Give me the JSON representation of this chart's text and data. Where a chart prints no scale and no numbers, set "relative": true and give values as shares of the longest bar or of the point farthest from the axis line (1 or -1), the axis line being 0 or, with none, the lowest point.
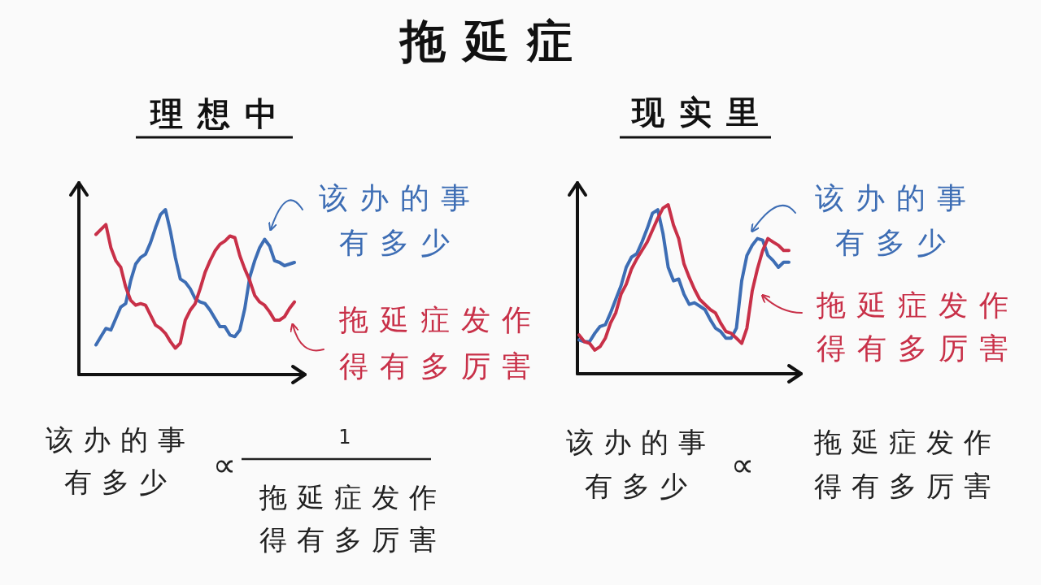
{
  "chart_data": [
    {
      "type": "line",
      "subtitle": "理想中",
      "relative": true,
      "legend": "right",
      "categories": [
        null,
        null,
        null,
        null,
        null,
        null,
        null,
        null,
        null,
        null,
        null,
        null,
        null,
        null,
        null,
        null,
        null,
        null,
        null,
        null,
        null,
        null,
        null,
        null,
        null,
        null,
        null,
        null,
        null,
        null,
        null,
        null,
        null,
        null,
        null,
        null,
        null,
        null,
        null,
        null,
        null
      ],
      "series": [
        {
          "name": "该办的事有多少",
          "color": "#3d6db4",
          "values": [
            0.18,
            0.23,
            0.28,
            0.27,
            0.34,
            0.41,
            0.43,
            0.57,
            0.67,
            0.71,
            0.73,
            0.8,
            0.89,
            0.97,
            1,
            0.87,
            0.71,
            0.58,
            0.56,
            0.52,
            0.46,
            0.44,
            0.43,
            0.39,
            0.34,
            0.29,
            0.29,
            0.24,
            0.23,
            0.27,
            0.4,
            0.59,
            0.69,
            0.77,
            0.82,
            0.78,
            0.69,
            0.68,
            0.66,
            0.67,
            0.68
          ]
        },
        {
          "name": "拖延症发作得有多厉害",
          "color": "#c83048",
          "values": [
            0.85,
            0.88,
            0.91,
            0.77,
            0.69,
            0.65,
            0.53,
            0.45,
            0.42,
            0.43,
            0.42,
            0.36,
            0.3,
            0.28,
            0.25,
            0.2,
            0.16,
            0.19,
            0.33,
            0.39,
            0.43,
            0.52,
            0.62,
            0.69,
            0.75,
            0.79,
            0.81,
            0.84,
            0.83,
            0.72,
            0.64,
            0.57,
            0.48,
            0.44,
            0.42,
            0.38,
            0.33,
            0.33,
            0.35,
            0.4,
            0.44
          ]
        }
      ],
      "annotations": [
        "该办的事有多少",
        "∝",
        "1",
        "拖延症发作得有多厉害"
      ]
    },
    {
      "type": "line",
      "title": "拖延症",
      "subtitle": "现实里",
      "relative": true,
      "legend": "right",
      "categories": [
        null,
        null,
        null,
        null,
        null,
        null,
        null,
        null,
        null,
        null,
        null,
        null,
        null,
        null,
        null,
        null,
        null,
        null,
        null,
        null,
        null,
        null,
        null,
        null,
        null,
        null,
        null,
        null,
        null,
        null,
        null,
        null,
        null,
        null,
        null,
        null,
        null,
        null,
        null,
        null,
        null
      ],
      "series": [
        {
          "name": "该办的事有多少",
          "color": "#3d6db4",
          "values": [
            0.2,
            0.19,
            0.19,
            0.24,
            0.28,
            0.29,
            0.36,
            0.44,
            0.52,
            0.63,
            0.69,
            0.71,
            0.78,
            0.86,
            0.95,
            0.97,
            0.83,
            0.63,
            0.55,
            0.56,
            0.47,
            0.41,
            0.42,
            0.4,
            0.38,
            0.32,
            0.27,
            0.25,
            0.21,
            0.21,
            0.27,
            0.55,
            0.7,
            0.76,
            0.8,
            0.79,
            0.7,
            0.67,
            0.63,
            0.66,
            0.66
          ]
        },
        {
          "name": "拖延症发作得有多厉害",
          "color": "#c83048",
          "values": [
            0.23,
            0.19,
            0.18,
            0.14,
            0.16,
            0.21,
            0.3,
            0.36,
            0.47,
            0.53,
            0.62,
            0.68,
            0.73,
            0.78,
            0.85,
            0.92,
            0.98,
            1,
            0.88,
            0.8,
            0.65,
            0.57,
            0.5,
            0.44,
            0.41,
            0.38,
            0.36,
            0.3,
            0.25,
            0.24,
            0.21,
            0.18,
            0.27,
            0.49,
            0.62,
            0.73,
            0.8,
            0.78,
            0.76,
            0.73,
            0.73
          ]
        }
      ],
      "annotations": [
        "该办的事有多少",
        "∝",
        "拖延症发作得有多厉害"
      ]
    }
  ]
}
